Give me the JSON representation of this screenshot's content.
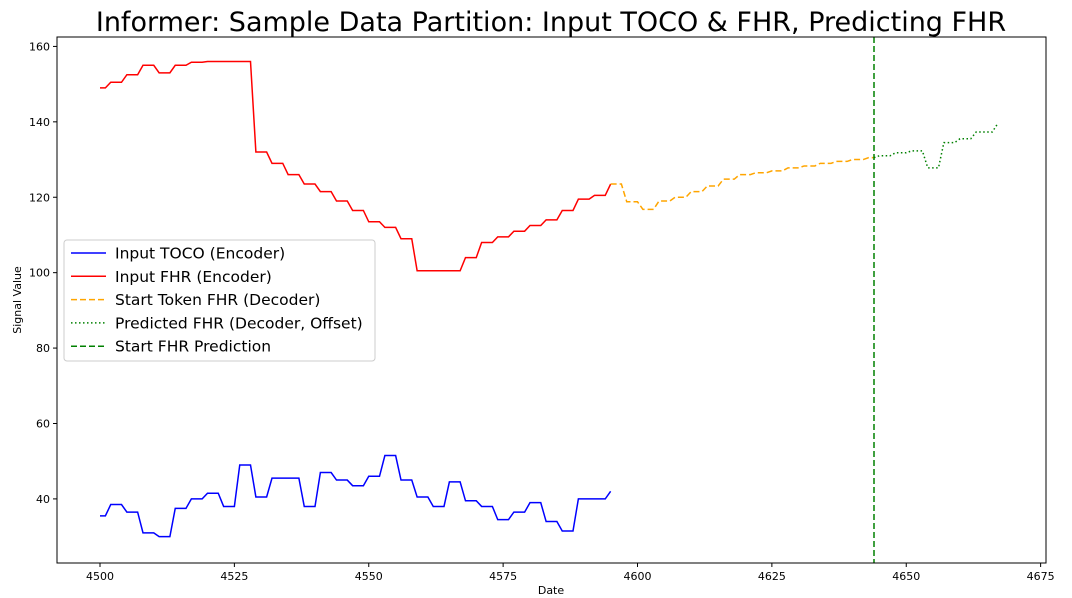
{
  "chart_data": {
    "type": "line",
    "title": "Informer: Sample Data Partition: Input TOCO & FHR, Predicting FHR",
    "xlabel": "Date",
    "ylabel": "Signal Value",
    "xlim": [
      4492,
      4676
    ],
    "ylim": [
      23,
      162.5
    ],
    "xticks": [
      4500,
      4525,
      4550,
      4575,
      4600,
      4625,
      4650,
      4675
    ],
    "yticks": [
      40,
      60,
      80,
      100,
      120,
      140,
      160
    ],
    "grid": false,
    "legend_position": "center-left",
    "series": [
      {
        "name": "Input TOCO (Encoder)",
        "color": "#0000ff",
        "style": "solid",
        "step": true,
        "x": [
          4500,
          4501,
          4502,
          4503,
          4504,
          4505,
          4506,
          4507,
          4508,
          4509,
          4510,
          4511,
          4512,
          4513,
          4514,
          4515,
          4516,
          4517,
          4518,
          4519,
          4520,
          4521,
          4522,
          4523,
          4524,
          4525,
          4526,
          4527,
          4528,
          4529,
          4530,
          4531,
          4532,
          4533,
          4534,
          4535,
          4536,
          4537,
          4538,
          4539,
          4540,
          4541,
          4542,
          4543,
          4544,
          4545,
          4546,
          4547,
          4548,
          4549,
          4550,
          4551,
          4552,
          4553,
          4554,
          4555,
          4556,
          4557,
          4558,
          4559,
          4560,
          4561,
          4562,
          4563,
          4564,
          4565,
          4566,
          4567,
          4568,
          4569,
          4570,
          4571,
          4572,
          4573,
          4574,
          4575,
          4576,
          4577,
          4578,
          4579,
          4580,
          4581,
          4582,
          4583,
          4584,
          4585,
          4586,
          4587,
          4588,
          4589,
          4590,
          4591,
          4592,
          4593,
          4594,
          4595
        ],
        "y": [
          35.5,
          35.5,
          38.5,
          38.5,
          38.5,
          36.5,
          36.5,
          36.5,
          31,
          31,
          31,
          30,
          30,
          30,
          37.5,
          37.5,
          37.5,
          40,
          40,
          40,
          41.5,
          41.5,
          41.5,
          38,
          38,
          38,
          49,
          49,
          49,
          40.5,
          40.5,
          40.5,
          45.5,
          45.5,
          45.5,
          45.5,
          45.5,
          45.5,
          38,
          38,
          38,
          47,
          47,
          47,
          45,
          45,
          45,
          43.5,
          43.5,
          43.5,
          46,
          46,
          46,
          51.5,
          51.5,
          51.5,
          45,
          45,
          45,
          40.5,
          40.5,
          40.5,
          38,
          38,
          38,
          44.5,
          44.5,
          44.5,
          39.5,
          39.5,
          39.5,
          38,
          38,
          38,
          34.5,
          34.5,
          34.5,
          36.5,
          36.5,
          36.5,
          39,
          39,
          39,
          34,
          34,
          34,
          31.5,
          31.5,
          31.5,
          40,
          40,
          40,
          40,
          40,
          40,
          42
        ]
      },
      {
        "name": "Input FHR (Encoder)",
        "color": "#ff0000",
        "style": "solid",
        "step": true,
        "x": [
          4500,
          4501,
          4502,
          4503,
          4504,
          4505,
          4506,
          4507,
          4508,
          4509,
          4510,
          4511,
          4512,
          4513,
          4514,
          4515,
          4516,
          4517,
          4518,
          4519,
          4520,
          4521,
          4522,
          4523,
          4524,
          4525,
          4526,
          4527,
          4528,
          4529,
          4530,
          4531,
          4532,
          4533,
          4534,
          4535,
          4536,
          4537,
          4538,
          4539,
          4540,
          4541,
          4542,
          4543,
          4544,
          4545,
          4546,
          4547,
          4548,
          4549,
          4550,
          4551,
          4552,
          4553,
          4554,
          4555,
          4556,
          4557,
          4558,
          4559,
          4560,
          4561,
          4562,
          4563,
          4564,
          4565,
          4566,
          4567,
          4568,
          4569,
          4570,
          4571,
          4572,
          4573,
          4574,
          4575,
          4576,
          4577,
          4578,
          4579,
          4580,
          4581,
          4582,
          4583,
          4584,
          4585,
          4586,
          4587,
          4588,
          4589,
          4590,
          4591,
          4592,
          4593,
          4594,
          4595
        ],
        "y": [
          149,
          149,
          150.5,
          150.5,
          150.5,
          152.5,
          152.5,
          152.5,
          155,
          155,
          155,
          153,
          153,
          153,
          155,
          155,
          155,
          155.8,
          155.8,
          155.8,
          156,
          156,
          156,
          156,
          156,
          156,
          156,
          156,
          156,
          132,
          132,
          132,
          129,
          129,
          129,
          126,
          126,
          126,
          123.5,
          123.5,
          123.5,
          121.5,
          121.5,
          121.5,
          119,
          119,
          119,
          116.5,
          116.5,
          116.5,
          113.5,
          113.5,
          113.5,
          112,
          112,
          112,
          109,
          109,
          109,
          100.5,
          100.5,
          100.5,
          100.5,
          100.5,
          100.5,
          100.5,
          100.5,
          100.5,
          104,
          104,
          104,
          108,
          108,
          108,
          109.5,
          109.5,
          109.5,
          111,
          111,
          111,
          112.5,
          112.5,
          112.5,
          114,
          114,
          114,
          116.5,
          116.5,
          116.5,
          119.5,
          119.5,
          119.5,
          120.5,
          120.5,
          120.5,
          123.5
        ]
      },
      {
        "name": "Start Token FHR (Decoder)",
        "color": "#ffa500",
        "style": "dashed",
        "step": true,
        "x": [
          4595,
          4596,
          4597,
          4598,
          4599,
          4600,
          4601,
          4602,
          4603,
          4604,
          4605,
          4606,
          4607,
          4608,
          4609,
          4610,
          4611,
          4612,
          4613,
          4614,
          4615,
          4616,
          4617,
          4618,
          4619,
          4620,
          4621,
          4622,
          4623,
          4624,
          4625,
          4626,
          4627,
          4628,
          4629,
          4630,
          4631,
          4632,
          4633,
          4634,
          4635,
          4636,
          4637,
          4638,
          4639,
          4640,
          4641,
          4642,
          4643,
          4644
        ],
        "y": [
          123.5,
          123.5,
          123.5,
          118.8,
          118.8,
          118.8,
          116.8,
          116.8,
          116.8,
          119,
          119,
          119,
          120,
          120,
          120,
          121.5,
          121.5,
          121.5,
          123,
          123,
          123,
          124.8,
          124.8,
          124.8,
          126,
          126,
          126,
          126.5,
          126.5,
          126.5,
          127,
          127,
          127,
          127.8,
          127.8,
          127.8,
          128.3,
          128.3,
          128.3,
          129,
          129,
          129,
          129.5,
          129.5,
          129.5,
          130,
          130,
          130,
          130.5,
          130.5
        ]
      },
      {
        "name": "Predicted FHR (Decoder, Offset)",
        "color": "#008000",
        "style": "dotted",
        "step": true,
        "x": [
          4644,
          4645,
          4646,
          4647,
          4648,
          4649,
          4650,
          4651,
          4652,
          4653,
          4654,
          4655,
          4656,
          4657,
          4658,
          4659,
          4660,
          4661,
          4662,
          4663,
          4664,
          4665,
          4666,
          4667
        ],
        "y": [
          130.5,
          131,
          131,
          131,
          131.8,
          131.8,
          131.8,
          132.3,
          132.3,
          132.3,
          127.8,
          127.8,
          127.8,
          134.5,
          134.5,
          134.5,
          135.5,
          135.5,
          135.5,
          137.3,
          137.3,
          137.3,
          137.3,
          139.5
        ]
      }
    ],
    "vline": {
      "name": "Start FHR Prediction",
      "x": 4644,
      "color": "#008000",
      "style": "dashed"
    }
  }
}
